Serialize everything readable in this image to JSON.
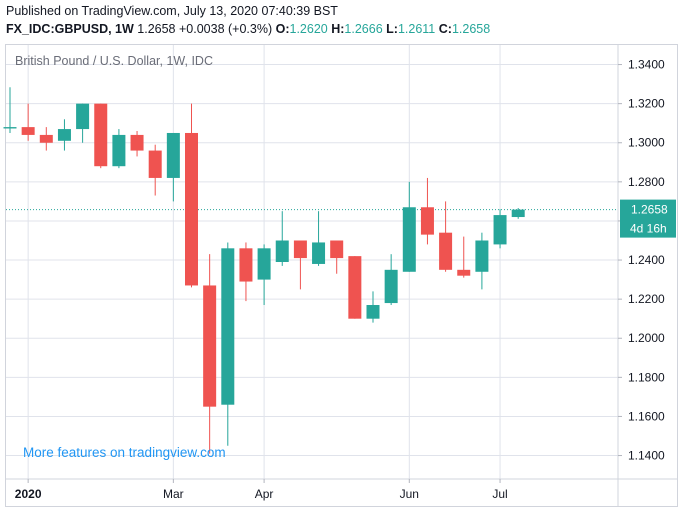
{
  "header": {
    "published": "Published on TradingView.com, July 13, 2020 07:40:39 BST",
    "symbol": "FX_IDC:GBPUSD, 1W",
    "last": "1.2658",
    "change": "+0.0038 (+0.3%)",
    "o_label": "O:",
    "o_value": "1.2620",
    "h_label": "H:",
    "h_value": "1.2666",
    "l_label": "L:",
    "l_value": "1.2611",
    "c_label": "C:",
    "c_value": "1.2658"
  },
  "promo": "More features on tradingview.com",
  "price_tag": {
    "value": "1.2658",
    "countdown": "4d 16h"
  },
  "colors": {
    "up": "#26a69a",
    "down": "#ef5350",
    "grid": "#e0e3eb",
    "last_line": "#26a69a",
    "promo": "#2196f3"
  },
  "chart_data": {
    "type": "candlestick",
    "title": "British Pound / U.S. Dollar, 1W, IDC",
    "y_ticks": [
      "1.1400",
      "1.1600",
      "1.1800",
      "1.2000",
      "1.2200",
      "1.2400",
      "1.2600",
      "1.2800",
      "1.3000",
      "1.3200",
      "1.3400"
    ],
    "ylim": [
      1.128,
      1.35
    ],
    "x_ticks": [
      {
        "label": "2020",
        "index": 1
      },
      {
        "label": "Mar",
        "index": 9
      },
      {
        "label": "Apr",
        "index": 14
      },
      {
        "label": "Jun",
        "index": 22
      },
      {
        "label": "Jul",
        "index": 27
      }
    ],
    "last_price": 1.2658,
    "candles": [
      {
        "o": 1.3073,
        "h": 1.3284,
        "l": 1.305,
        "c": 1.308
      },
      {
        "o": 1.308,
        "h": 1.32,
        "l": 1.301,
        "c": 1.304
      },
      {
        "o": 1.304,
        "h": 1.308,
        "l": 1.296,
        "c": 1.3
      },
      {
        "o": 1.301,
        "h": 1.312,
        "l": 1.296,
        "c": 1.307
      },
      {
        "o": 1.307,
        "h": 1.32,
        "l": 1.3,
        "c": 1.32
      },
      {
        "o": 1.32,
        "h": 1.32,
        "l": 1.287,
        "c": 1.288
      },
      {
        "o": 1.288,
        "h": 1.307,
        "l": 1.287,
        "c": 1.304
      },
      {
        "o": 1.304,
        "h": 1.306,
        "l": 1.293,
        "c": 1.296
      },
      {
        "o": 1.296,
        "h": 1.299,
        "l": 1.273,
        "c": 1.282
      },
      {
        "o": 1.282,
        "h": 1.305,
        "l": 1.27,
        "c": 1.305
      },
      {
        "o": 1.305,
        "h": 1.32,
        "l": 1.226,
        "c": 1.227
      },
      {
        "o": 1.227,
        "h": 1.243,
        "l": 1.141,
        "c": 1.165
      },
      {
        "o": 1.166,
        "h": 1.249,
        "l": 1.145,
        "c": 1.246
      },
      {
        "o": 1.246,
        "h": 1.249,
        "l": 1.219,
        "c": 1.229
      },
      {
        "o": 1.23,
        "h": 1.248,
        "l": 1.217,
        "c": 1.246
      },
      {
        "o": 1.239,
        "h": 1.265,
        "l": 1.237,
        "c": 1.25
      },
      {
        "o": 1.25,
        "h": 1.25,
        "l": 1.225,
        "c": 1.241
      },
      {
        "o": 1.238,
        "h": 1.265,
        "l": 1.237,
        "c": 1.249
      },
      {
        "o": 1.25,
        "h": 1.25,
        "l": 1.233,
        "c": 1.241
      },
      {
        "o": 1.242,
        "h": 1.242,
        "l": 1.21,
        "c": 1.21
      },
      {
        "o": 1.21,
        "h": 1.224,
        "l": 1.208,
        "c": 1.217
      },
      {
        "o": 1.218,
        "h": 1.243,
        "l": 1.217,
        "c": 1.235
      },
      {
        "o": 1.234,
        "h": 1.28,
        "l": 1.234,
        "c": 1.267
      },
      {
        "o": 1.267,
        "h": 1.282,
        "l": 1.248,
        "c": 1.253
      },
      {
        "o": 1.254,
        "h": 1.27,
        "l": 1.234,
        "c": 1.235
      },
      {
        "o": 1.235,
        "h": 1.252,
        "l": 1.231,
        "c": 1.232
      },
      {
        "o": 1.234,
        "h": 1.254,
        "l": 1.225,
        "c": 1.25
      },
      {
        "o": 1.248,
        "h": 1.266,
        "l": 1.246,
        "c": 1.263
      },
      {
        "o": 1.262,
        "h": 1.2666,
        "l": 1.2611,
        "c": 1.2658
      }
    ]
  }
}
